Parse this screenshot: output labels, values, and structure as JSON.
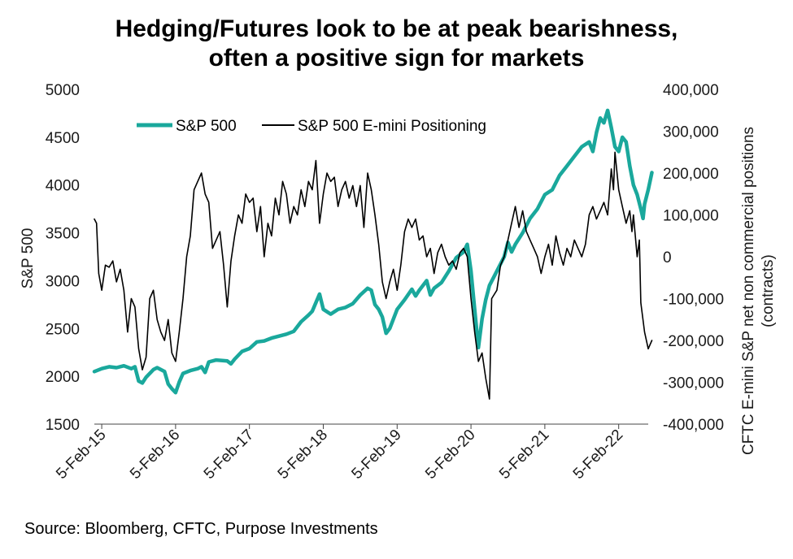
{
  "chart_data": {
    "type": "line",
    "title_lines": [
      "Hedging/Futures look to be at peak bearishness,",
      "often a positive sign for markets"
    ],
    "y_left_label": "S&P 500",
    "y_right_label_lines": [
      "CFTC E-mini S&P net non commercial positions",
      "(contracts)"
    ],
    "x_axis": {
      "range": [
        2015.0,
        2022.5
      ],
      "tick_positions": [
        2015.1,
        2016.1,
        2017.1,
        2018.1,
        2019.1,
        2020.1,
        2021.1,
        2022.1
      ],
      "tick_labels": [
        "5-Feb-15",
        "5-Feb-16",
        "5-Feb-17",
        "5-Feb-18",
        "5-Feb-19",
        "5-Feb-20",
        "5-Feb-21",
        "5-Feb-22"
      ]
    },
    "y_left": {
      "range": [
        1500,
        5000
      ],
      "ticks": [
        1500,
        2000,
        2500,
        3000,
        3500,
        4000,
        4500,
        5000
      ],
      "tick_labels": [
        "1500",
        "2000",
        "2500",
        "3000",
        "3500",
        "4000",
        "4500",
        "5000"
      ]
    },
    "y_right": {
      "range": [
        -400000,
        400000
      ],
      "ticks": [
        -400000,
        -300000,
        -200000,
        -100000,
        0,
        100000,
        200000,
        300000,
        400000
      ],
      "tick_labels": [
        "-400,000",
        "-300,000",
        "-200,000",
        "-100,000",
        "0",
        "100,000",
        "200,000",
        "300,000",
        "400,000"
      ]
    },
    "series": [
      {
        "name": "S&P 500",
        "axis": "left",
        "color": "#1aa89c",
        "points": [
          [
            2015.0,
            2050
          ],
          [
            2015.1,
            2080
          ],
          [
            2015.2,
            2100
          ],
          [
            2015.3,
            2090
          ],
          [
            2015.4,
            2110
          ],
          [
            2015.5,
            2080
          ],
          [
            2015.55,
            2100
          ],
          [
            2015.6,
            1950
          ],
          [
            2015.65,
            1930
          ],
          [
            2015.7,
            1990
          ],
          [
            2015.8,
            2070
          ],
          [
            2015.85,
            2090
          ],
          [
            2015.95,
            2050
          ],
          [
            2016.0,
            1920
          ],
          [
            2016.05,
            1870
          ],
          [
            2016.1,
            1830
          ],
          [
            2016.15,
            1940
          ],
          [
            2016.2,
            2030
          ],
          [
            2016.3,
            2060
          ],
          [
            2016.4,
            2080
          ],
          [
            2016.45,
            2100
          ],
          [
            2016.5,
            2040
          ],
          [
            2016.55,
            2150
          ],
          [
            2016.65,
            2170
          ],
          [
            2016.8,
            2160
          ],
          [
            2016.85,
            2130
          ],
          [
            2016.9,
            2180
          ],
          [
            2017.0,
            2260
          ],
          [
            2017.1,
            2290
          ],
          [
            2017.2,
            2360
          ],
          [
            2017.3,
            2370
          ],
          [
            2017.4,
            2400
          ],
          [
            2017.5,
            2420
          ],
          [
            2017.6,
            2440
          ],
          [
            2017.7,
            2470
          ],
          [
            2017.8,
            2570
          ],
          [
            2017.9,
            2640
          ],
          [
            2017.95,
            2680
          ],
          [
            2018.05,
            2860
          ],
          [
            2018.1,
            2700
          ],
          [
            2018.2,
            2650
          ],
          [
            2018.3,
            2700
          ],
          [
            2018.4,
            2720
          ],
          [
            2018.5,
            2760
          ],
          [
            2018.6,
            2850
          ],
          [
            2018.7,
            2920
          ],
          [
            2018.75,
            2900
          ],
          [
            2018.8,
            2750
          ],
          [
            2018.85,
            2700
          ],
          [
            2018.9,
            2620
          ],
          [
            2018.95,
            2450
          ],
          [
            2019.0,
            2500
          ],
          [
            2019.1,
            2700
          ],
          [
            2019.2,
            2800
          ],
          [
            2019.3,
            2910
          ],
          [
            2019.35,
            2840
          ],
          [
            2019.4,
            2900
          ],
          [
            2019.5,
            3000
          ],
          [
            2019.55,
            2850
          ],
          [
            2019.6,
            2920
          ],
          [
            2019.7,
            2980
          ],
          [
            2019.8,
            3100
          ],
          [
            2019.9,
            3240
          ],
          [
            2020.0,
            3300
          ],
          [
            2020.05,
            3380
          ],
          [
            2020.1,
            3100
          ],
          [
            2020.15,
            2700
          ],
          [
            2020.2,
            2300
          ],
          [
            2020.25,
            2600
          ],
          [
            2020.3,
            2800
          ],
          [
            2020.35,
            2950
          ],
          [
            2020.45,
            3100
          ],
          [
            2020.55,
            3250
          ],
          [
            2020.6,
            3400
          ],
          [
            2020.65,
            3300
          ],
          [
            2020.7,
            3380
          ],
          [
            2020.8,
            3500
          ],
          [
            2020.9,
            3650
          ],
          [
            2021.0,
            3750
          ],
          [
            2021.1,
            3900
          ],
          [
            2021.2,
            3950
          ],
          [
            2021.3,
            4100
          ],
          [
            2021.4,
            4200
          ],
          [
            2021.5,
            4300
          ],
          [
            2021.6,
            4400
          ],
          [
            2021.7,
            4450
          ],
          [
            2021.75,
            4350
          ],
          [
            2021.8,
            4550
          ],
          [
            2021.85,
            4700
          ],
          [
            2021.9,
            4650
          ],
          [
            2021.95,
            4780
          ],
          [
            2022.0,
            4600
          ],
          [
            2022.05,
            4400
          ],
          [
            2022.1,
            4350
          ],
          [
            2022.15,
            4500
          ],
          [
            2022.2,
            4450
          ],
          [
            2022.25,
            4200
          ],
          [
            2022.3,
            4000
          ],
          [
            2022.35,
            3900
          ],
          [
            2022.4,
            3750
          ],
          [
            2022.43,
            3650
          ],
          [
            2022.45,
            3800
          ],
          [
            2022.5,
            3950
          ],
          [
            2022.55,
            4130
          ]
        ]
      },
      {
        "name": "S&P 500 E-mini Positioning",
        "axis": "right",
        "color": "#000000",
        "points": [
          [
            2015.0,
            90000
          ],
          [
            2015.03,
            80000
          ],
          [
            2015.06,
            -40000
          ],
          [
            2015.1,
            -80000
          ],
          [
            2015.15,
            -20000
          ],
          [
            2015.2,
            -25000
          ],
          [
            2015.25,
            -10000
          ],
          [
            2015.3,
            -60000
          ],
          [
            2015.35,
            -30000
          ],
          [
            2015.4,
            -80000
          ],
          [
            2015.45,
            -180000
          ],
          [
            2015.5,
            -100000
          ],
          [
            2015.55,
            -120000
          ],
          [
            2015.6,
            -220000
          ],
          [
            2015.65,
            -270000
          ],
          [
            2015.7,
            -240000
          ],
          [
            2015.75,
            -100000
          ],
          [
            2015.8,
            -80000
          ],
          [
            2015.85,
            -150000
          ],
          [
            2015.9,
            -180000
          ],
          [
            2015.95,
            -200000
          ],
          [
            2016.0,
            -150000
          ],
          [
            2016.05,
            -230000
          ],
          [
            2016.1,
            -250000
          ],
          [
            2016.15,
            -180000
          ],
          [
            2016.2,
            -100000
          ],
          [
            2016.25,
            0
          ],
          [
            2016.3,
            50000
          ],
          [
            2016.35,
            160000
          ],
          [
            2016.4,
            180000
          ],
          [
            2016.45,
            200000
          ],
          [
            2016.5,
            150000
          ],
          [
            2016.55,
            130000
          ],
          [
            2016.6,
            20000
          ],
          [
            2016.65,
            40000
          ],
          [
            2016.7,
            60000
          ],
          [
            2016.75,
            -20000
          ],
          [
            2016.8,
            -120000
          ],
          [
            2016.85,
            -10000
          ],
          [
            2016.9,
            50000
          ],
          [
            2016.95,
            100000
          ],
          [
            2017.0,
            80000
          ],
          [
            2017.05,
            150000
          ],
          [
            2017.1,
            130000
          ],
          [
            2017.15,
            140000
          ],
          [
            2017.2,
            60000
          ],
          [
            2017.25,
            120000
          ],
          [
            2017.3,
            0
          ],
          [
            2017.35,
            80000
          ],
          [
            2017.4,
            50000
          ],
          [
            2017.45,
            140000
          ],
          [
            2017.5,
            100000
          ],
          [
            2017.55,
            180000
          ],
          [
            2017.6,
            150000
          ],
          [
            2017.65,
            80000
          ],
          [
            2017.7,
            120000
          ],
          [
            2017.75,
            100000
          ],
          [
            2017.8,
            160000
          ],
          [
            2017.85,
            120000
          ],
          [
            2017.9,
            180000
          ],
          [
            2017.95,
            160000
          ],
          [
            2018.0,
            230000
          ],
          [
            2018.05,
            80000
          ],
          [
            2018.1,
            150000
          ],
          [
            2018.15,
            200000
          ],
          [
            2018.2,
            180000
          ],
          [
            2018.25,
            190000
          ],
          [
            2018.3,
            120000
          ],
          [
            2018.35,
            160000
          ],
          [
            2018.4,
            180000
          ],
          [
            2018.45,
            140000
          ],
          [
            2018.5,
            170000
          ],
          [
            2018.55,
            120000
          ],
          [
            2018.6,
            170000
          ],
          [
            2018.65,
            70000
          ],
          [
            2018.7,
            200000
          ],
          [
            2018.75,
            160000
          ],
          [
            2018.8,
            100000
          ],
          [
            2018.85,
            30000
          ],
          [
            2018.9,
            -60000
          ],
          [
            2018.95,
            -100000
          ],
          [
            2019.0,
            -60000
          ],
          [
            2019.05,
            -30000
          ],
          [
            2019.1,
            -80000
          ],
          [
            2019.15,
            -20000
          ],
          [
            2019.2,
            60000
          ],
          [
            2019.25,
            90000
          ],
          [
            2019.3,
            70000
          ],
          [
            2019.35,
            90000
          ],
          [
            2019.4,
            40000
          ],
          [
            2019.45,
            50000
          ],
          [
            2019.5,
            0
          ],
          [
            2019.55,
            20000
          ],
          [
            2019.6,
            -40000
          ],
          [
            2019.65,
            10000
          ],
          [
            2019.7,
            30000
          ],
          [
            2019.75,
            0
          ],
          [
            2019.8,
            -20000
          ],
          [
            2019.85,
            -10000
          ],
          [
            2019.9,
            -30000
          ],
          [
            2019.95,
            10000
          ],
          [
            2020.0,
            20000
          ],
          [
            2020.05,
            0
          ],
          [
            2020.1,
            -100000
          ],
          [
            2020.15,
            -180000
          ],
          [
            2020.2,
            -250000
          ],
          [
            2020.25,
            -230000
          ],
          [
            2020.3,
            -290000
          ],
          [
            2020.35,
            -340000
          ],
          [
            2020.38,
            -100000
          ],
          [
            2020.45,
            -80000
          ],
          [
            2020.5,
            -20000
          ],
          [
            2020.55,
            0
          ],
          [
            2020.6,
            40000
          ],
          [
            2020.65,
            80000
          ],
          [
            2020.7,
            120000
          ],
          [
            2020.75,
            70000
          ],
          [
            2020.8,
            110000
          ],
          [
            2020.85,
            60000
          ],
          [
            2020.9,
            40000
          ],
          [
            2020.95,
            20000
          ],
          [
            2021.0,
            0
          ],
          [
            2021.05,
            -40000
          ],
          [
            2021.1,
            0
          ],
          [
            2021.15,
            30000
          ],
          [
            2021.2,
            -20000
          ],
          [
            2021.25,
            50000
          ],
          [
            2021.3,
            10000
          ],
          [
            2021.35,
            -20000
          ],
          [
            2021.4,
            20000
          ],
          [
            2021.45,
            0
          ],
          [
            2021.5,
            40000
          ],
          [
            2021.55,
            20000
          ],
          [
            2021.6,
            0
          ],
          [
            2021.65,
            30000
          ],
          [
            2021.7,
            100000
          ],
          [
            2021.75,
            120000
          ],
          [
            2021.8,
            90000
          ],
          [
            2021.85,
            110000
          ],
          [
            2021.9,
            130000
          ],
          [
            2021.95,
            100000
          ],
          [
            2022.0,
            210000
          ],
          [
            2022.03,
            160000
          ],
          [
            2022.05,
            250000
          ],
          [
            2022.1,
            160000
          ],
          [
            2022.15,
            120000
          ],
          [
            2022.2,
            80000
          ],
          [
            2022.25,
            110000
          ],
          [
            2022.28,
            60000
          ],
          [
            2022.3,
            100000
          ],
          [
            2022.35,
            0
          ],
          [
            2022.38,
            40000
          ],
          [
            2022.4,
            -110000
          ],
          [
            2022.45,
            -180000
          ],
          [
            2022.5,
            -220000
          ],
          [
            2022.55,
            -200000
          ]
        ]
      }
    ],
    "legend": [
      {
        "label": "S&P 500",
        "color": "#1aa89c"
      },
      {
        "label": "S&P 500 E-mini Positioning",
        "color": "#000000"
      }
    ],
    "source": "Source: Bloomberg, CFTC, Purpose Investments"
  }
}
